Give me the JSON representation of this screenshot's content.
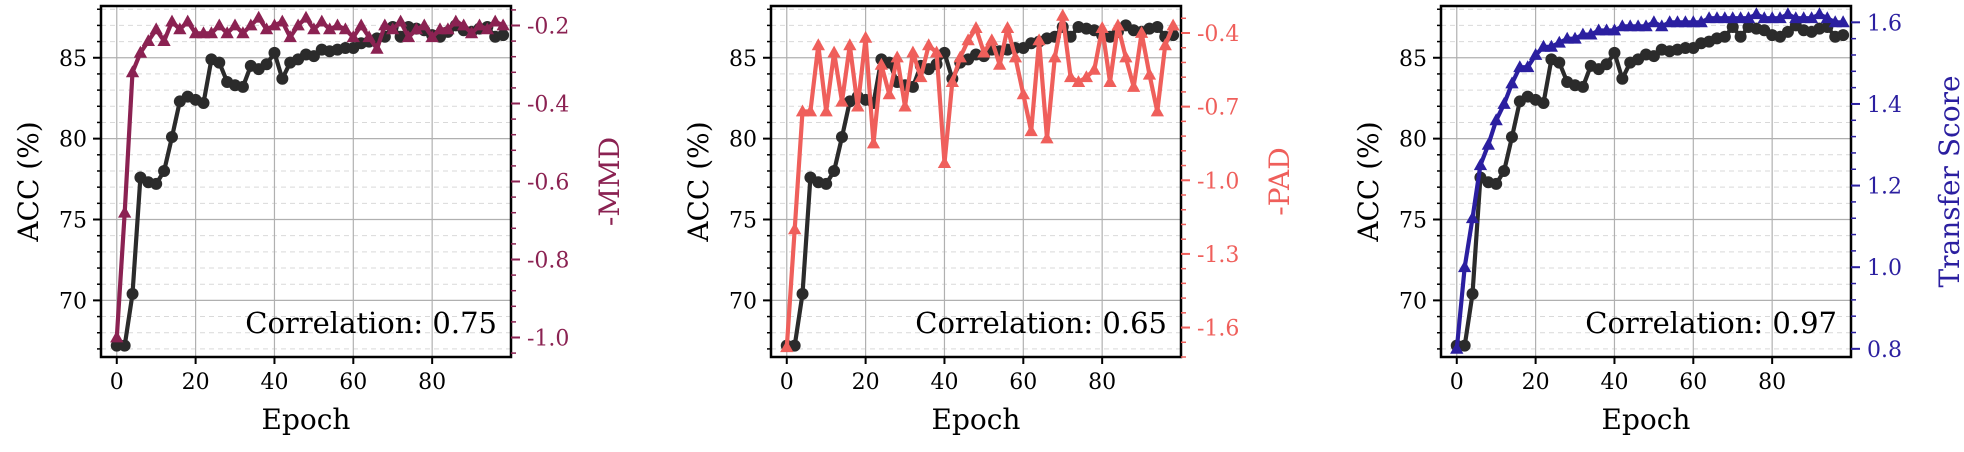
{
  "chart_data": [
    {
      "type": "line",
      "xlabel": "Epoch",
      "ylabel_left": "ACC (%)",
      "ylabel_right": "-MMD",
      "annotation": "Correlation: 0.75",
      "xlim": [
        -4,
        100
      ],
      "ylim_left": [
        66.5,
        88.2
      ],
      "ylim_right": [
        -1.05,
        -0.15
      ],
      "x_ticks": [
        "0",
        "20",
        "40",
        "60",
        "80"
      ],
      "y_ticks_left": [
        "70",
        "75",
        "80",
        "85"
      ],
      "y_ticks_right": [
        "-1.0",
        "-0.8",
        "-0.6",
        "-0.4",
        "-0.2"
      ],
      "grid": true,
      "series": [
        {
          "name": "",
          "axis": "left",
          "marker": "circle",
          "color": "#2b2b2b",
          "x": [
            0,
            2,
            4,
            6,
            8,
            10,
            12,
            14,
            16,
            18,
            20,
            22,
            24,
            26,
            28,
            30,
            32,
            34,
            36,
            38,
            40,
            42,
            44,
            46,
            48,
            50,
            52,
            54,
            56,
            58,
            60,
            62,
            64,
            66,
            68,
            70,
            72,
            74,
            76,
            78,
            80,
            82,
            84,
            86,
            88,
            90,
            92,
            94,
            96,
            98
          ],
          "y": [
            67.2,
            67.2,
            70.4,
            77.6,
            77.3,
            77.2,
            78.0,
            80.1,
            82.3,
            82.6,
            82.4,
            82.2,
            84.9,
            84.7,
            83.5,
            83.3,
            83.2,
            84.5,
            84.3,
            84.6,
            85.3,
            83.7,
            84.7,
            84.9,
            85.2,
            85.1,
            85.5,
            85.4,
            85.5,
            85.6,
            85.6,
            85.9,
            86.0,
            86.2,
            86.3,
            86.9,
            86.3,
            86.9,
            86.8,
            86.7,
            86.4,
            86.3,
            86.6,
            87.0,
            86.7,
            86.6,
            86.8,
            86.9,
            86.3,
            86.4
          ]
        },
        {
          "name": "",
          "axis": "right",
          "marker": "triangle",
          "color": "#8b2252",
          "x": [
            0,
            2,
            4,
            6,
            8,
            10,
            12,
            14,
            16,
            18,
            20,
            22,
            24,
            26,
            28,
            30,
            32,
            34,
            36,
            38,
            40,
            42,
            44,
            46,
            48,
            50,
            52,
            54,
            56,
            58,
            60,
            62,
            64,
            66,
            68,
            70,
            72,
            74,
            76,
            78,
            80,
            82,
            84,
            86,
            88,
            90,
            92,
            94,
            96,
            98
          ],
          "y": [
            -1.0,
            -0.68,
            -0.32,
            -0.27,
            -0.24,
            -0.21,
            -0.24,
            -0.19,
            -0.21,
            -0.19,
            -0.22,
            -0.22,
            -0.22,
            -0.2,
            -0.22,
            -0.2,
            -0.22,
            -0.2,
            -0.18,
            -0.21,
            -0.2,
            -0.19,
            -0.23,
            -0.2,
            -0.18,
            -0.21,
            -0.19,
            -0.21,
            -0.2,
            -0.21,
            -0.23,
            -0.2,
            -0.23,
            -0.26,
            -0.2,
            -0.21,
            -0.19,
            -0.23,
            -0.21,
            -0.2,
            -0.23,
            -0.21,
            -0.21,
            -0.19,
            -0.2,
            -0.22,
            -0.2,
            -0.21,
            -0.19,
            -0.2
          ]
        }
      ]
    },
    {
      "type": "line",
      "xlabel": "Epoch",
      "ylabel_left": "ACC (%)",
      "ylabel_right": "-PAD",
      "annotation": "Correlation: 0.65",
      "xlim": [
        -4,
        100
      ],
      "ylim_left": [
        66.5,
        88.2
      ],
      "ylim_right": [
        -1.72,
        -0.29
      ],
      "x_ticks": [
        "0",
        "20",
        "40",
        "60",
        "80"
      ],
      "y_ticks_left": [
        "70",
        "75",
        "80",
        "85"
      ],
      "y_ticks_right": [
        "-1.6",
        "-1.3",
        "-1.0",
        "-0.7",
        "-0.4"
      ],
      "grid": true,
      "series": [
        {
          "name": "",
          "axis": "left",
          "marker": "circle",
          "color": "#2b2b2b",
          "x": [
            0,
            2,
            4,
            6,
            8,
            10,
            12,
            14,
            16,
            18,
            20,
            22,
            24,
            26,
            28,
            30,
            32,
            34,
            36,
            38,
            40,
            42,
            44,
            46,
            48,
            50,
            52,
            54,
            56,
            58,
            60,
            62,
            64,
            66,
            68,
            70,
            72,
            74,
            76,
            78,
            80,
            82,
            84,
            86,
            88,
            90,
            92,
            94,
            96,
            98
          ],
          "y": [
            67.2,
            67.2,
            70.4,
            77.6,
            77.3,
            77.2,
            78.0,
            80.1,
            82.3,
            82.6,
            82.4,
            82.2,
            84.9,
            84.7,
            83.5,
            83.3,
            83.2,
            84.5,
            84.3,
            84.6,
            85.3,
            83.7,
            84.7,
            84.9,
            85.2,
            85.1,
            85.5,
            85.4,
            85.5,
            85.6,
            85.6,
            85.9,
            86.0,
            86.2,
            86.3,
            86.9,
            86.3,
            86.9,
            86.8,
            86.7,
            86.4,
            86.3,
            86.6,
            87.0,
            86.7,
            86.6,
            86.8,
            86.9,
            86.3,
            86.4
          ]
        },
        {
          "name": "",
          "axis": "right",
          "marker": "triangle",
          "color": "#ef5f5b",
          "x": [
            0,
            2,
            4,
            6,
            8,
            10,
            12,
            14,
            16,
            18,
            20,
            22,
            24,
            26,
            28,
            30,
            32,
            34,
            36,
            38,
            40,
            42,
            44,
            46,
            48,
            50,
            52,
            54,
            56,
            58,
            60,
            62,
            64,
            66,
            68,
            70,
            72,
            74,
            76,
            78,
            80,
            82,
            84,
            86,
            88,
            90,
            92,
            94,
            96,
            98
          ],
          "y": [
            -1.68,
            -1.2,
            -0.72,
            -0.72,
            -0.45,
            -0.72,
            -0.48,
            -0.68,
            -0.45,
            -0.7,
            -0.42,
            -0.85,
            -0.53,
            -0.65,
            -0.5,
            -0.7,
            -0.48,
            -0.58,
            -0.45,
            -0.48,
            -0.93,
            -0.6,
            -0.5,
            -0.43,
            -0.38,
            -0.48,
            -0.43,
            -0.53,
            -0.38,
            -0.5,
            -0.65,
            -0.8,
            -0.43,
            -0.83,
            -0.5,
            -0.33,
            -0.58,
            -0.6,
            -0.58,
            -0.55,
            -0.38,
            -0.6,
            -0.37,
            -0.5,
            -0.62,
            -0.4,
            -0.57,
            -0.72,
            -0.45,
            -0.37
          ]
        }
      ]
    },
    {
      "type": "line",
      "xlabel": "Epoch",
      "ylabel_left": "ACC (%)",
      "ylabel_right": "Transfer Score",
      "annotation": "Correlation: 0.97",
      "xlim": [
        -4,
        100
      ],
      "ylim_left": [
        66.5,
        88.2
      ],
      "ylim_right": [
        0.78,
        1.64
      ],
      "x_ticks": [
        "0",
        "20",
        "40",
        "60",
        "80"
      ],
      "y_ticks_left": [
        "70",
        "75",
        "80",
        "85"
      ],
      "y_ticks_right": [
        "0.8",
        "1.0",
        "1.2",
        "1.4",
        "1.6"
      ],
      "grid": true,
      "series": [
        {
          "name": "",
          "axis": "left",
          "marker": "circle",
          "color": "#2b2b2b",
          "x": [
            0,
            2,
            4,
            6,
            8,
            10,
            12,
            14,
            16,
            18,
            20,
            22,
            24,
            26,
            28,
            30,
            32,
            34,
            36,
            38,
            40,
            42,
            44,
            46,
            48,
            50,
            52,
            54,
            56,
            58,
            60,
            62,
            64,
            66,
            68,
            70,
            72,
            74,
            76,
            78,
            80,
            82,
            84,
            86,
            88,
            90,
            92,
            94,
            96,
            98
          ],
          "y": [
            67.2,
            67.2,
            70.4,
            77.6,
            77.3,
            77.2,
            78.0,
            80.1,
            82.3,
            82.6,
            82.4,
            82.2,
            84.9,
            84.7,
            83.5,
            83.3,
            83.2,
            84.5,
            84.3,
            84.6,
            85.3,
            83.7,
            84.7,
            84.9,
            85.2,
            85.1,
            85.5,
            85.4,
            85.5,
            85.6,
            85.6,
            85.9,
            86.0,
            86.2,
            86.3,
            86.9,
            86.3,
            86.9,
            86.8,
            86.7,
            86.4,
            86.3,
            86.6,
            87.0,
            86.7,
            86.6,
            86.8,
            86.9,
            86.3,
            86.4
          ]
        },
        {
          "name": "",
          "axis": "right",
          "marker": "triangle",
          "color": "#2b1fa0",
          "x": [
            0,
            2,
            4,
            6,
            8,
            10,
            12,
            14,
            16,
            18,
            20,
            22,
            24,
            26,
            28,
            30,
            32,
            34,
            36,
            38,
            40,
            42,
            44,
            46,
            48,
            50,
            52,
            54,
            56,
            58,
            60,
            62,
            64,
            66,
            68,
            70,
            72,
            74,
            76,
            78,
            80,
            82,
            84,
            86,
            88,
            90,
            92,
            94,
            96,
            98
          ],
          "y": [
            0.8,
            1.0,
            1.12,
            1.25,
            1.3,
            1.36,
            1.4,
            1.45,
            1.49,
            1.49,
            1.52,
            1.54,
            1.54,
            1.55,
            1.56,
            1.56,
            1.57,
            1.57,
            1.58,
            1.58,
            1.58,
            1.59,
            1.59,
            1.59,
            1.59,
            1.6,
            1.59,
            1.6,
            1.6,
            1.6,
            1.6,
            1.6,
            1.61,
            1.61,
            1.61,
            1.61,
            1.61,
            1.61,
            1.62,
            1.61,
            1.61,
            1.61,
            1.62,
            1.61,
            1.61,
            1.61,
            1.62,
            1.61,
            1.6,
            1.6
          ]
        }
      ]
    }
  ]
}
